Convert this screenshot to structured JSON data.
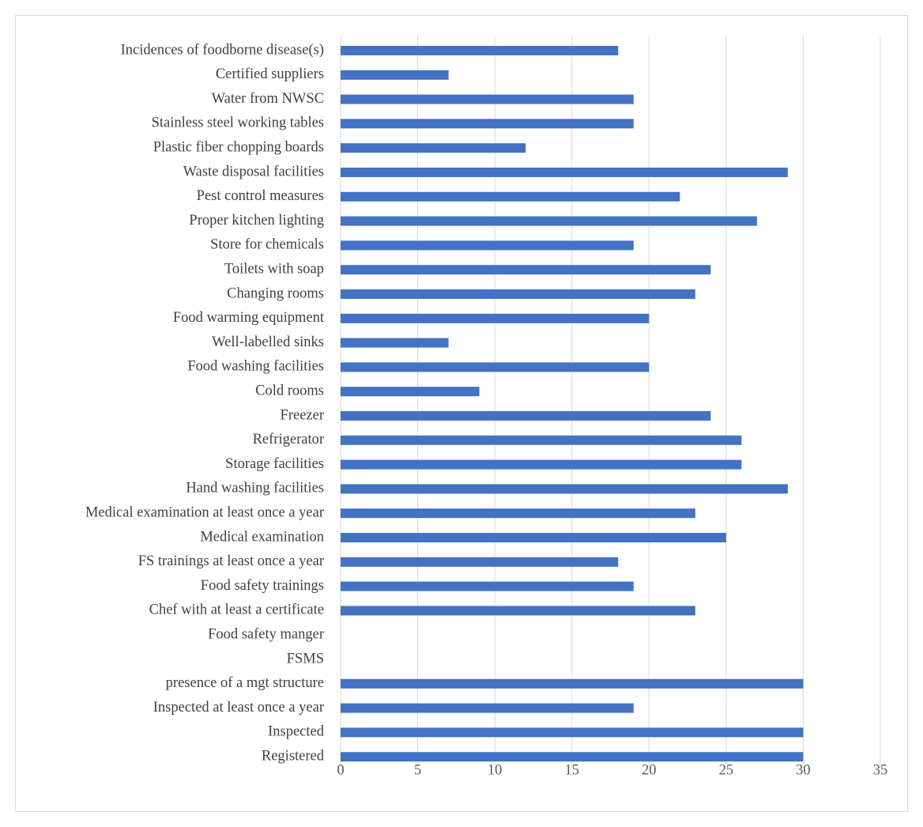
{
  "chart_data": {
    "type": "bar",
    "orientation": "horizontal",
    "title": "",
    "xlabel": "",
    "ylabel": "",
    "xlim": [
      0,
      35
    ],
    "x_ticks": [
      0,
      5,
      10,
      15,
      20,
      25,
      30,
      35
    ],
    "grid": true,
    "legend": "none",
    "bar_color": "#4472c4",
    "categories": [
      "Incidences of foodborne disease(s)",
      "Certified suppliers",
      "Water from NWSC",
      "Stainless steel working tables",
      "Plastic fiber chopping boards",
      "Waste disposal facilities",
      "Pest control measures",
      "Proper kitchen lighting",
      "Store for chemicals",
      "Toilets with soap",
      "Changing rooms",
      "Food warming equipment",
      "Well-labelled sinks",
      "Food washing facilities",
      "Cold rooms",
      "Freezer",
      "Refrigerator",
      "Storage facilities",
      "Hand washing facilities",
      "Medical examination at least once a year",
      "Medical examination",
      "FS trainings at least once a year",
      "Food safety trainings",
      "Chef with at least a certificate",
      "Food safety manger",
      "FSMS",
      "presence of a mgt structure",
      "Inspected at least once a year",
      "Inspected",
      "Registered"
    ],
    "values": [
      18,
      7,
      19,
      19,
      12,
      29,
      22,
      27,
      19,
      24,
      23,
      20,
      7,
      20,
      9,
      24,
      26,
      26,
      29,
      23,
      25,
      18,
      19,
      23,
      0,
      0,
      30,
      19,
      30,
      30
    ]
  }
}
